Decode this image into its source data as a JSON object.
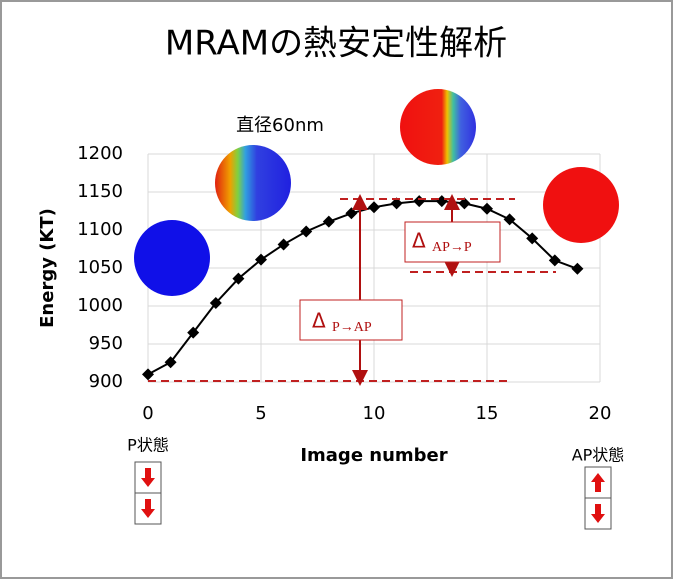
{
  "chart_data": {
    "type": "line",
    "title": "MRAMの熱安定性解析",
    "x_label": "Image number",
    "y_label": "Energy (KT)",
    "x": [
      0,
      1,
      2,
      3,
      4,
      5,
      6,
      7,
      8,
      9,
      10,
      11,
      12,
      13,
      14,
      15,
      16,
      17,
      18,
      19
    ],
    "series": [
      {
        "name": "Energy",
        "color": "#000000",
        "values": [
          910,
          926,
          965,
          1004,
          1036,
          1061,
          1081,
          1098,
          1111,
          1122,
          1130,
          1135,
          1138,
          1138,
          1135,
          1128,
          1114,
          1089,
          1060,
          1049
        ]
      }
    ],
    "xlim": [
      0,
      20
    ],
    "xticks": [
      0,
      5,
      10,
      15,
      20
    ],
    "ylim": [
      900,
      1200
    ],
    "yticks": [
      900,
      950,
      1000,
      1050,
      1100,
      1150,
      1200
    ],
    "grid": true,
    "annotations": {
      "diameter": "直径60nm",
      "p_state": "P状態",
      "ap_state": "AP状態",
      "delta_p_ap": {
        "symbol": "Δ",
        "subscript": "P→AP"
      },
      "delta_ap_p": {
        "symbol": "Δ",
        "subscript": "AP→P"
      }
    }
  }
}
